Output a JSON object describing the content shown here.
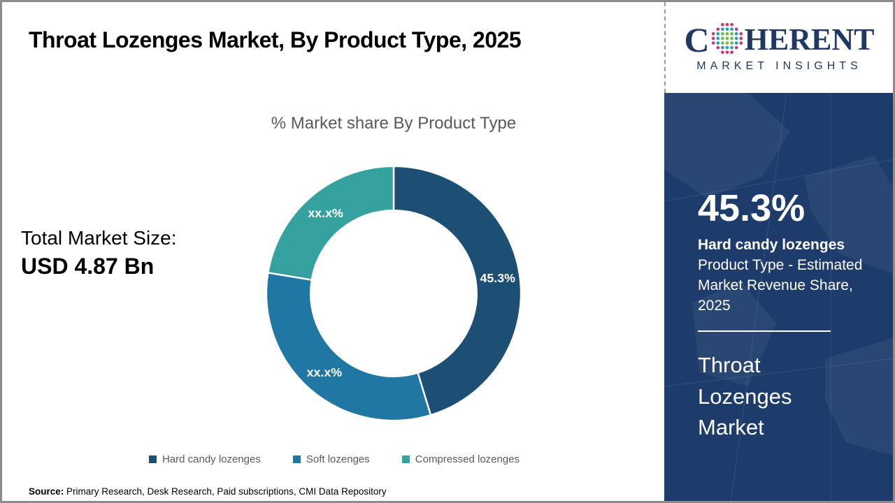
{
  "page": {
    "title": "Throat Lozenges Market, By Product Type, 2025",
    "source_label": "Source:",
    "source_text": " Primary Research, Desk Research, Paid subscriptions, CMI Data Repository"
  },
  "logo": {
    "brand_prefix": "C",
    "brand_suffix": "HERENT",
    "brand_subtitle": "MARKET INSIGHTS",
    "brand_color": "#1f3864"
  },
  "left_stats": {
    "label": "Total Market Size:",
    "value": "USD 4.87 Bn"
  },
  "chart_data": {
    "type": "pie",
    "donut": true,
    "title": "% Market share By Product Type",
    "start_angle_deg": 0,
    "direction": "clockwise",
    "inner_radius_ratio": 0.65,
    "legend_position": "bottom",
    "segments": [
      {
        "label": "Hard candy lozenges",
        "value": 45.3,
        "display": "45.3%",
        "color": "#1d4e74"
      },
      {
        "label": "Soft lozenges",
        "value": 32.3,
        "display": "xx.x%",
        "color": "#2177a3"
      },
      {
        "label": "Compressed lozenges",
        "value": 22.4,
        "display": "xx.x%",
        "color": "#35a2a0"
      }
    ]
  },
  "sidebar": {
    "stat_value": "45.3%",
    "stat_title": "Hard candy lozenges",
    "stat_description": "Product Type - Estimated Market Revenue Share, 2025",
    "market_name": "Throat Lozenges Market",
    "background_color": "#1e3c6b"
  }
}
